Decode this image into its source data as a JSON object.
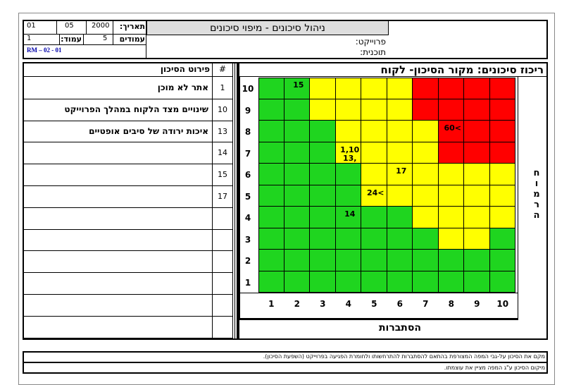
{
  "header": {
    "title": "ניהול סיכונים - מיפוי סיכונים",
    "date_label": "תאריך:",
    "date_day": "01",
    "date_month": "05",
    "date_year": "2000",
    "page_label": "עמוד:",
    "page_value": "1",
    "pages_label": "עמודים",
    "pages_value": "5",
    "doc_code": "RM – 02 - 01",
    "project_label": "פרוייקט:",
    "program_label": "תוכנית:"
  },
  "list": {
    "col_desc": "פירוט הסיכון",
    "col_num": "#",
    "rows": [
      {
        "num": "1",
        "desc": "אתר לא מוכן"
      },
      {
        "num": "10",
        "desc": "שינויים מצד הלקוח במהלך הפרוייקט"
      },
      {
        "num": "13",
        "desc": "איכות ירודה של סיבים אופטיים"
      },
      {
        "num": "14",
        "desc": ""
      },
      {
        "num": "15",
        "desc": ""
      },
      {
        "num": "17",
        "desc": ""
      },
      {
        "num": "",
        "desc": ""
      },
      {
        "num": "",
        "desc": ""
      },
      {
        "num": "",
        "desc": ""
      },
      {
        "num": "",
        "desc": ""
      },
      {
        "num": "",
        "desc": ""
      },
      {
        "num": "",
        "desc": ""
      }
    ]
  },
  "matrix_panel": {
    "title": "ריכוז סיכונים: מקור הסיכון- לקוח",
    "y_axis_letters": [
      "ח",
      "ו",
      "מ",
      "ר",
      "ה"
    ],
    "x_axis_label": "הסתברות",
    "x_ticks": [
      "1",
      "2",
      "3",
      "4",
      "5",
      "6",
      "7",
      "8",
      "9",
      "10"
    ],
    "y_ticks": [
      "10",
      "9",
      "8",
      "7",
      "6",
      "5",
      "4",
      "3",
      "2",
      "1"
    ],
    "colors": {
      "green": "#1fd51f",
      "yellow": "#ffff00",
      "red": "#ff0000"
    },
    "grid_rows_top_to_bottom": [
      "GGYYYYRRRR",
      "GGYYYYRRRR",
      "GGGYYYYRRR",
      "GGGYYYYRRR",
      "GGGGYYYYYY",
      "GGGGYYYYYY",
      "GGGGGGYYYY",
      "GGGGGGGYYG",
      "GGGGGGGGGG",
      "GGGGGGGGGG"
    ],
    "labels": [
      {
        "prob": 2,
        "sev": 10,
        "text": "15"
      },
      {
        "prob": 8,
        "sev": 8,
        "text": "60<"
      },
      {
        "prob": 4,
        "sev": 7,
        "text": "1,10"
      },
      {
        "prob": 4,
        "sev": 7,
        "text": "13,"
      },
      {
        "prob": 6,
        "sev": 6,
        "text": "17"
      },
      {
        "prob": 5,
        "sev": 5,
        "text": "24<"
      },
      {
        "prob": 4,
        "sev": 4,
        "text": "14"
      }
    ]
  },
  "footer": {
    "note1": "מקם את הסיכון על-גבי המפה המצורפת בהתאם להסתברות להתרחשותו ולחומרת הפגיעה בפרוייקט (השפעת הסיכון).",
    "note2": "מיקום הסיכון ע\"ג המפה מציין את עוצמתו."
  }
}
